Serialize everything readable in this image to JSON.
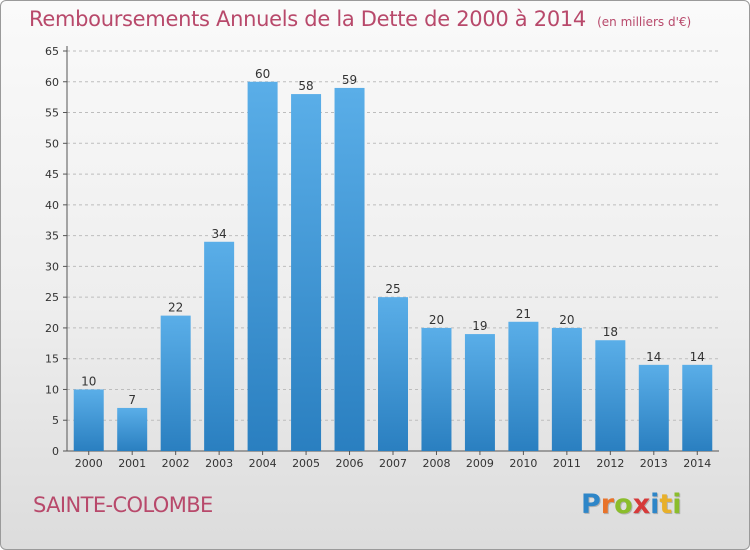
{
  "header": {
    "title": "Remboursements Annuels de la Dette de 2000 à 2014",
    "unit": "(en milliers d'€)"
  },
  "footer": {
    "commune": "SAINTE-COLOMBE",
    "brand_letters": [
      {
        "char": "P",
        "color": "#2e86c8"
      },
      {
        "char": "r",
        "color": "#e8732a"
      },
      {
        "char": "o",
        "color": "#8bbd2c"
      },
      {
        "char": "x",
        "color": "#d63a3a"
      },
      {
        "char": "i",
        "color": "#2e86c8"
      },
      {
        "char": "t",
        "color": "#e8b02a"
      },
      {
        "char": "i",
        "color": "#8bbd2c"
      }
    ]
  },
  "colors": {
    "bar_top": "#5aaee8",
    "bar_bottom": "#2a7fc0",
    "title": "#b8496b",
    "grid": "#bdbdbd"
  },
  "chart_data": {
    "type": "bar",
    "categories": [
      "2000",
      "2001",
      "2002",
      "2003",
      "2004",
      "2005",
      "2006",
      "2007",
      "2008",
      "2009",
      "2010",
      "2011",
      "2012",
      "2013",
      "2014"
    ],
    "values": [
      10,
      7,
      22,
      34,
      60,
      58,
      59,
      25,
      20,
      19,
      21,
      20,
      18,
      14,
      14
    ],
    "data_labels": [
      "10",
      "7",
      "22",
      "34",
      "60",
      "58",
      "59",
      "25",
      "20",
      "19",
      "21",
      "20",
      "18",
      "14",
      "14"
    ],
    "yticks": [
      "0",
      "5",
      "10",
      "15",
      "20",
      "25",
      "30",
      "35",
      "40",
      "45",
      "50",
      "55",
      "60",
      "65"
    ],
    "ylim": [
      0,
      65
    ],
    "grid": "horizontal dashed",
    "legend": "none"
  }
}
